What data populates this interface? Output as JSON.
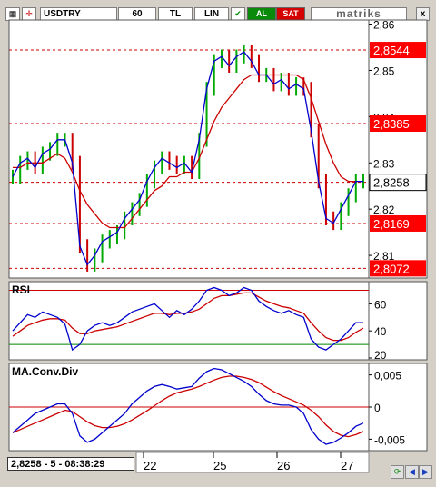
{
  "toolbar": {
    "symbol": "USDTRY",
    "interval": "60",
    "currency": "TL",
    "scale": "LIN",
    "buy_label": "AL",
    "sell_label": "SAT",
    "brand": "matriks",
    "close_label": "x"
  },
  "colors": {
    "price_line": "#0000cc",
    "ma_line": "#cc0000",
    "up_bar": "#00aa00",
    "down_bar": "#cc0000",
    "level_line": "#cc0000",
    "rsi_low_line": "#008800"
  },
  "price_axis": {
    "tick_labels": [
      "2,86",
      "2,85",
      "2,84",
      "2,83",
      "2,82",
      "2,81"
    ],
    "level_labels": [
      "2,8544",
      "2,8385",
      "2,8169",
      "2,8072"
    ],
    "current_label": "2,8258"
  },
  "rsi": {
    "title": "RSI",
    "tick_labels": [
      "60",
      "40",
      "20"
    ]
  },
  "macd": {
    "title": "MA.Conv.Div",
    "tick_labels": [
      "0,005",
      "0",
      "-0,005"
    ]
  },
  "time_axis": {
    "labels": [
      "22",
      "25",
      "26",
      "27"
    ]
  },
  "status": {
    "readout": "2,8258 - 5 - 08:38:29"
  },
  "nav": {
    "refresh_icon": "refresh-icon",
    "left_icon": "arrow-left-icon",
    "right_icon": "arrow-right-icon"
  },
  "chart_data": {
    "type": "line",
    "title": "",
    "xlabel": "",
    "ylabel": "",
    "price": {
      "ylim": [
        2.8055,
        2.8605
      ],
      "levels": [
        2.8544,
        2.8385,
        2.8169,
        2.8072
      ],
      "current": 2.8258,
      "x_ticks": [
        "22",
        "25",
        "26",
        "27"
      ],
      "series": [
        {
          "values": [
            2.827,
            2.83,
            2.831,
            2.829,
            2.832,
            2.833,
            2.835,
            2.835,
            2.83,
            2.812,
            2.808,
            2.81,
            2.813,
            2.814,
            2.815,
            2.818,
            2.82,
            2.822,
            2.826,
            2.829,
            2.831,
            2.83,
            2.829,
            2.83,
            2.828,
            2.835,
            2.846,
            2.852,
            2.853,
            2.851,
            2.853,
            2.854,
            2.852,
            2.849,
            2.849,
            2.847,
            2.848,
            2.846,
            2.847,
            2.846,
            2.837,
            2.826,
            2.818,
            2.817,
            2.82,
            2.823,
            2.826,
            2.826
          ]
        },
        {
          "values": [
            2.829,
            2.829,
            2.83,
            2.83,
            2.83,
            2.831,
            2.832,
            2.831,
            2.828,
            2.824,
            2.821,
            2.819,
            2.817,
            2.816,
            2.816,
            2.816,
            2.818,
            2.82,
            2.822,
            2.824,
            2.825,
            2.827,
            2.827,
            2.828,
            2.828,
            2.831,
            2.835,
            2.839,
            2.842,
            2.844,
            2.846,
            2.848,
            2.849,
            2.849,
            2.849,
            2.849,
            2.849,
            2.849,
            2.849,
            2.848,
            2.844,
            2.839,
            2.834,
            2.83,
            2.827,
            2.826,
            2.826,
            2.826
          ]
        }
      ]
    },
    "rsi": {
      "ylim": [
        20,
        75
      ],
      "levels": [
        70,
        30
      ],
      "series": [
        {
          "values": [
            40,
            46,
            52,
            50,
            54,
            52,
            50,
            45,
            26,
            30,
            40,
            44,
            46,
            44,
            46,
            50,
            54,
            56,
            58,
            60,
            55,
            50,
            55,
            52,
            56,
            62,
            70,
            72,
            70,
            66,
            68,
            72,
            70,
            62,
            58,
            55,
            53,
            55,
            52,
            50,
            34,
            28,
            26,
            30,
            34,
            40,
            46,
            46
          ]
        },
        {
          "values": [
            36,
            40,
            44,
            46,
            48,
            49,
            49,
            48,
            42,
            38,
            38,
            40,
            41,
            42,
            43,
            45,
            47,
            49,
            51,
            53,
            53,
            52,
            53,
            53,
            54,
            56,
            60,
            64,
            66,
            66,
            67,
            68,
            68,
            65,
            62,
            60,
            58,
            57,
            55,
            53,
            46,
            40,
            35,
            33,
            33,
            35,
            39,
            42
          ]
        }
      ]
    },
    "macd": {
      "ylim": [
        -0.0065,
        0.0065
      ],
      "series": [
        {
          "values": [
            -0.004,
            -0.003,
            -0.002,
            -0.001,
            -0.0005,
            0.0,
            0.0005,
            0.0005,
            -0.001,
            -0.0045,
            -0.0055,
            -0.005,
            -0.004,
            -0.003,
            -0.002,
            -0.001,
            0.0005,
            0.0015,
            0.0025,
            0.0032,
            0.0035,
            0.0032,
            0.0028,
            0.003,
            0.0032,
            0.0045,
            0.0055,
            0.006,
            0.0058,
            0.0052,
            0.0046,
            0.004,
            0.0032,
            0.002,
            0.001,
            0.0005,
            0.0003,
            0.0003,
            0.0,
            -0.001,
            -0.0035,
            -0.005,
            -0.0058,
            -0.0055,
            -0.0048,
            -0.004,
            -0.003,
            -0.0025
          ]
        },
        {
          "values": [
            -0.004,
            -0.0035,
            -0.003,
            -0.0025,
            -0.002,
            -0.0015,
            -0.001,
            -0.0005,
            -0.0007,
            -0.0015,
            -0.0023,
            -0.0029,
            -0.0032,
            -0.0032,
            -0.003,
            -0.0026,
            -0.002,
            -0.0013,
            -0.0006,
            0.0002,
            0.001,
            0.0017,
            0.0022,
            0.0025,
            0.0028,
            0.0032,
            0.0037,
            0.0042,
            0.0046,
            0.0048,
            0.0048,
            0.0046,
            0.0043,
            0.0038,
            0.0031,
            0.0024,
            0.0018,
            0.0013,
            0.0008,
            0.0003,
            -0.0005,
            -0.0015,
            -0.0028,
            -0.0038,
            -0.0044,
            -0.0046,
            -0.0043,
            -0.0038
          ]
        }
      ]
    }
  }
}
